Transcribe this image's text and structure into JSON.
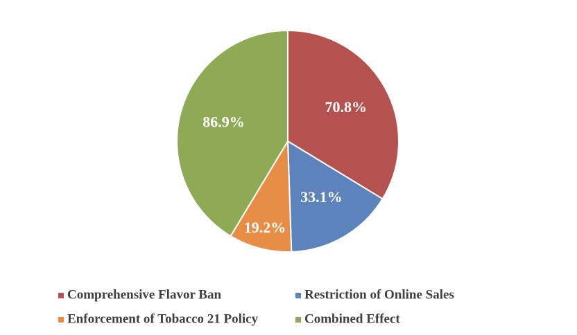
{
  "chart_data": {
    "type": "pie",
    "categories": [
      "Comprehensive Flavor Ban",
      "Restriction of Online Sales",
      "Enforcement of Tobacco 21 Policy",
      "Combined Effect"
    ],
    "values": [
      70.8,
      33.1,
      19.2,
      86.9
    ],
    "value_labels": [
      "70.8%",
      "33.1%",
      "19.2%",
      "86.9%"
    ],
    "colors": [
      "#b5514f",
      "#5d83bd",
      "#e88d45",
      "#8eaa55"
    ]
  }
}
